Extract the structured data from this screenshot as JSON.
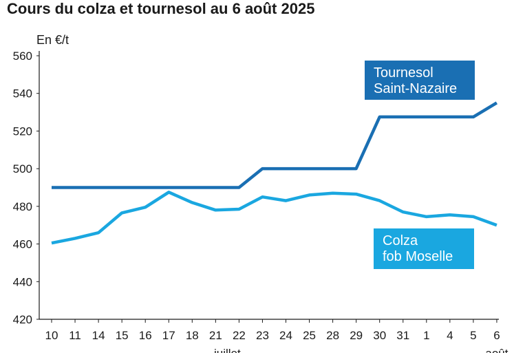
{
  "chart_data": {
    "type": "line",
    "title": "Cours du colza et tournesol au 6 août 2025",
    "ylabel": "En €/t",
    "ylim": [
      420,
      560
    ],
    "yticks": [
      420,
      440,
      460,
      480,
      500,
      520,
      540,
      560
    ],
    "categories": [
      "10",
      "11",
      "14",
      "15",
      "16",
      "17",
      "18",
      "21",
      "22",
      "23",
      "24",
      "25",
      "28",
      "29",
      "30",
      "31",
      "1",
      "4",
      "5",
      "6"
    ],
    "month_labels": [
      {
        "at_index": 7.5,
        "text": "juillet"
      },
      {
        "at_index": 19,
        "text": "août"
      }
    ],
    "grid": false,
    "series": [
      {
        "name": "Tournesol Saint-Nazaire",
        "legend_lines": [
          "Tournesol",
          "Saint-Nazaire"
        ],
        "color": "#1a6fb3",
        "values": [
          490,
          490,
          490,
          490,
          490,
          490,
          490,
          490,
          490,
          500,
          500,
          500,
          500,
          500,
          527.5,
          527.5,
          527.5,
          527.5,
          527.5,
          535
        ]
      },
      {
        "name": "Colza fob Moselle",
        "legend_lines": [
          "Colza",
          "fob Moselle"
        ],
        "color": "#1aa7e0",
        "values": [
          460.5,
          463,
          466,
          476.5,
          479.5,
          487.5,
          482,
          478,
          478.5,
          485,
          483,
          486,
          487,
          486.5,
          483,
          477,
          474.5,
          475.5,
          474.5,
          470
        ]
      }
    ]
  }
}
